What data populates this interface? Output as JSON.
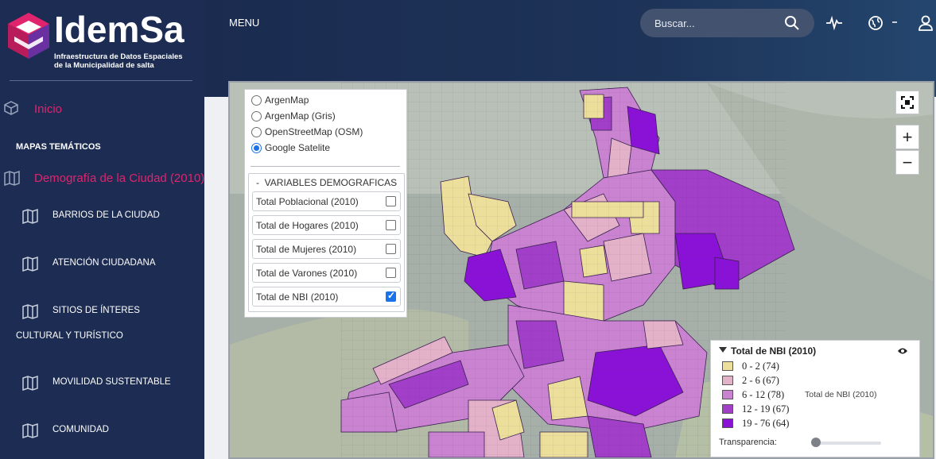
{
  "brand": {
    "name": "IdemSa",
    "subtitle_line1": "Infraestructura de Datos Espaciales",
    "subtitle_line2": "de la Municipalidad de salta",
    "logo_colors": [
      "#e0246e",
      "#6a2fa0",
      "#ffffff"
    ]
  },
  "sidebar": {
    "inicio_label": "Inicio",
    "section_title": "MAPAS TEMÁTICOS",
    "demografia_label": "Demografía de la Ciudad (2010)",
    "items": [
      {
        "label": "BARRIOS DE LA CIUDAD",
        "icon": "map-icon"
      },
      {
        "label": "ATENCIÓN CIUDADANA",
        "icon": "map-icon"
      },
      {
        "label": "SITIOS DE ÍNTERES",
        "icon": "map-icon"
      },
      {
        "label": "MOVILIDAD SUSTENTABLE",
        "icon": "map-icon"
      },
      {
        "label": "COMUNIDAD",
        "icon": "map-icon"
      }
    ],
    "sitios_continuation": "CULTURAL Y TURÍSTICO",
    "accent_color": "#e0246e"
  },
  "topbar": {
    "menu_label": "MENU",
    "search_placeholder": "Buscar..."
  },
  "basemaps": {
    "options": [
      "ArgenMap",
      "ArgenMap (Gris)",
      "OpenStreetMap (OSM)",
      "Google Satelite"
    ],
    "selected": "Google Satelite"
  },
  "variables": {
    "group_title": "VARIABLES DEMOGRAFICAS",
    "group_toggle": "-",
    "items": [
      {
        "label": "Total Poblacional (2010)",
        "checked": false
      },
      {
        "label": "Total de Hogares (2010)",
        "checked": false
      },
      {
        "label": "Total de Mujeres (2010)",
        "checked": false
      },
      {
        "label": "Total de Varones (2010)",
        "checked": false
      },
      {
        "label": "Total de NBI (2010)",
        "checked": true
      }
    ]
  },
  "map_controls": {
    "zoom_in": "+",
    "zoom_out": "−"
  },
  "legend": {
    "title": "Total de NBI (2010)",
    "classes": [
      {
        "range": "0 - 2 (74)",
        "color": "#ecdf9b"
      },
      {
        "range": "2 - 6 (67)",
        "color": "#e3b1c8"
      },
      {
        "range": "6 - 12 (78)",
        "color": "#c983d0"
      },
      {
        "range": "12 - 19 (67)",
        "color": "#a23fc9"
      },
      {
        "range": "19 - 76 (64)",
        "color": "#8a12d6"
      }
    ],
    "side_label": "Total de NBI (2010)",
    "transparency_label": "Transparencia:",
    "transparency_value": 0.05
  }
}
